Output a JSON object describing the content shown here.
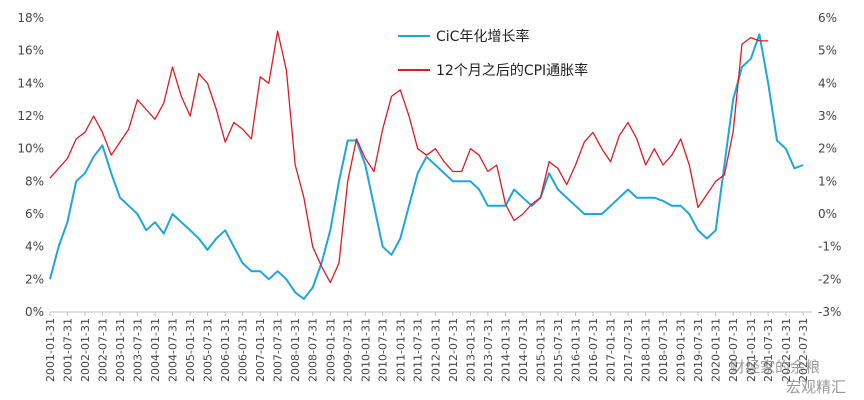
{
  "chart_data": {
    "type": "line",
    "title": "",
    "xlabel": "",
    "ylabel": "",
    "y_left_lim": [
      0,
      18
    ],
    "y_right_lim": [
      -3,
      6
    ],
    "y_left_ticks": [
      "0%",
      "2%",
      "4%",
      "6%",
      "8%",
      "10%",
      "12%",
      "14%",
      "16%",
      "18%"
    ],
    "y_right_ticks": [
      "-3%",
      "-2%",
      "-1%",
      "0%",
      "1%",
      "2%",
      "3%",
      "4%",
      "5%",
      "6%"
    ],
    "x_tick_labels": [
      "2001-01-31",
      "2001-07-31",
      "2002-01-31",
      "2002-07-31",
      "2003-01-31",
      "2003-07-31",
      "2004-01-31",
      "2004-07-31",
      "2005-01-31",
      "2005-07-31",
      "2006-01-31",
      "2006-07-31",
      "2007-01-31",
      "2007-07-31",
      "2008-01-31",
      "2008-07-31",
      "2009-01-31",
      "2009-07-31",
      "2010-01-31",
      "2010-07-31",
      "2011-01-31",
      "2011-07-31",
      "2012-01-31",
      "2012-07-31",
      "2013-01-31",
      "2013-07-31",
      "2014-01-31",
      "2014-07-31",
      "2015-01-31",
      "2015-07-31",
      "2016-01-31",
      "2016-07-31",
      "2017-01-31",
      "2017-07-31",
      "2018-01-31",
      "2018-07-31",
      "2019-01-31",
      "2019-07-31",
      "2020-01-31",
      "2020-07-31",
      "2021-01-31",
      "2021-07-31",
      "2022-01-31",
      "2022-07-31"
    ],
    "legend_position": "top-center",
    "grid": false,
    "series": [
      {
        "name": "CiC年化增长率",
        "axis": "left",
        "color": "#1ea6dc",
        "x": [
          "2001-01",
          "2001-04",
          "2001-07",
          "2001-10",
          "2002-01",
          "2002-04",
          "2002-07",
          "2002-10",
          "2003-01",
          "2003-04",
          "2003-07",
          "2003-10",
          "2004-01",
          "2004-04",
          "2004-07",
          "2004-10",
          "2005-01",
          "2005-04",
          "2005-07",
          "2005-10",
          "2006-01",
          "2006-04",
          "2006-07",
          "2006-10",
          "2007-01",
          "2007-04",
          "2007-07",
          "2007-10",
          "2008-01",
          "2008-04",
          "2008-07",
          "2008-10",
          "2009-01",
          "2009-04",
          "2009-07",
          "2009-10",
          "2010-01",
          "2010-04",
          "2010-07",
          "2010-10",
          "2011-01",
          "2011-04",
          "2011-07",
          "2011-10",
          "2012-01",
          "2012-04",
          "2012-07",
          "2012-10",
          "2013-01",
          "2013-04",
          "2013-07",
          "2013-10",
          "2014-01",
          "2014-04",
          "2014-07",
          "2014-10",
          "2015-01",
          "2015-04",
          "2015-07",
          "2015-10",
          "2016-01",
          "2016-04",
          "2016-07",
          "2016-10",
          "2017-01",
          "2017-04",
          "2017-07",
          "2017-10",
          "2018-01",
          "2018-04",
          "2018-07",
          "2018-10",
          "2019-01",
          "2019-04",
          "2019-07",
          "2019-10",
          "2020-01",
          "2020-04",
          "2020-07",
          "2020-10",
          "2021-01",
          "2021-04",
          "2021-07",
          "2021-10",
          "2022-01",
          "2022-04",
          "2022-07"
        ],
        "values": [
          2.0,
          4.0,
          5.5,
          8.0,
          8.5,
          9.5,
          10.2,
          8.5,
          7.0,
          6.5,
          6.0,
          5.0,
          5.5,
          4.8,
          6.0,
          5.5,
          5.0,
          4.5,
          3.8,
          4.5,
          5.0,
          4.0,
          3.0,
          2.5,
          2.5,
          2.0,
          2.5,
          2.0,
          1.2,
          0.8,
          1.5,
          3.0,
          5.0,
          8.0,
          10.5,
          10.5,
          9.0,
          6.5,
          4.0,
          3.5,
          4.5,
          6.5,
          8.5,
          9.5,
          9.0,
          8.5,
          8.0,
          8.0,
          8.0,
          7.5,
          6.5,
          6.5,
          6.5,
          7.5,
          7.0,
          6.5,
          7.0,
          8.5,
          7.5,
          7.0,
          6.5,
          6.0,
          6.0,
          6.0,
          6.5,
          7.0,
          7.5,
          7.0,
          7.0,
          7.0,
          6.8,
          6.5,
          6.5,
          6.0,
          5.0,
          4.5,
          5.0,
          9.0,
          13.0,
          15.0,
          15.5,
          17.0,
          14.0,
          10.5,
          10.0,
          8.8,
          9.0
        ]
      },
      {
        "name": "12个月之后的CPI通胀率",
        "axis": "right",
        "color": "#e01a24",
        "x": [
          "2001-01",
          "2001-04",
          "2001-07",
          "2001-10",
          "2002-01",
          "2002-04",
          "2002-07",
          "2002-10",
          "2003-01",
          "2003-04",
          "2003-07",
          "2003-10",
          "2004-01",
          "2004-04",
          "2004-07",
          "2004-10",
          "2005-01",
          "2005-04",
          "2005-07",
          "2005-10",
          "2006-01",
          "2006-04",
          "2006-07",
          "2006-10",
          "2007-01",
          "2007-04",
          "2007-07",
          "2007-10",
          "2008-01",
          "2008-04",
          "2008-07",
          "2008-10",
          "2009-01",
          "2009-04",
          "2009-07",
          "2009-10",
          "2010-01",
          "2010-04",
          "2010-07",
          "2010-10",
          "2011-01",
          "2011-04",
          "2011-07",
          "2011-10",
          "2012-01",
          "2012-04",
          "2012-07",
          "2012-10",
          "2013-01",
          "2013-04",
          "2013-07",
          "2013-10",
          "2014-01",
          "2014-04",
          "2014-07",
          "2014-10",
          "2015-01",
          "2015-04",
          "2015-07",
          "2015-10",
          "2016-01",
          "2016-04",
          "2016-07",
          "2016-10",
          "2017-01",
          "2017-04",
          "2017-07",
          "2017-10",
          "2018-01",
          "2018-04",
          "2018-07",
          "2018-10",
          "2019-01",
          "2019-04",
          "2019-07",
          "2019-10",
          "2020-01",
          "2020-04",
          "2020-07",
          "2020-10",
          "2021-01",
          "2021-04",
          "2021-07",
          "2021-10",
          "2022-01",
          "2022-04",
          "2022-07"
        ],
        "values": [
          1.1,
          1.4,
          1.7,
          2.3,
          2.5,
          3.0,
          2.5,
          1.8,
          2.2,
          2.6,
          3.5,
          3.2,
          2.9,
          3.4,
          4.5,
          3.6,
          3.0,
          4.3,
          4.0,
          3.2,
          2.2,
          2.8,
          2.6,
          2.3,
          4.2,
          4.0,
          5.6,
          4.4,
          1.5,
          0.5,
          -1.0,
          -1.6,
          -2.1,
          -1.5,
          1.0,
          2.3,
          1.7,
          1.3,
          2.6,
          3.6,
          3.8,
          3.0,
          2.0,
          1.8,
          2.0,
          1.6,
          1.3,
          1.3,
          2.0,
          1.8,
          1.3,
          1.5,
          0.3,
          -0.2,
          0.0,
          0.3,
          0.5,
          1.6,
          1.4,
          0.9,
          1.5,
          2.2,
          2.5,
          2.0,
          1.6,
          2.4,
          2.8,
          2.3,
          1.5,
          2.0,
          1.5,
          1.8,
          2.3,
          1.5,
          0.2,
          0.6,
          1.0,
          1.2,
          2.5,
          5.2,
          5.4,
          5.3,
          5.3,
          null,
          null,
          null,
          null
        ]
      }
    ]
  },
  "watermark": {
    "text1": "财经家的余粮",
    "text2": "宏观精汇"
  }
}
